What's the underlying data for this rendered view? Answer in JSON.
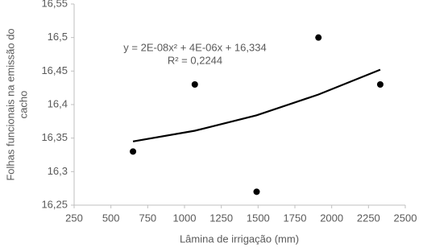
{
  "chart_data": {
    "type": "scatter",
    "xlabel": "Lâmina de irrigação (mm)",
    "ylabel": [
      "Folhas funcionais na emissão do",
      "cacho"
    ],
    "annotations": [
      "y = 2E-08x² + 4E-06x + 16,334",
      "R² = 0,2244"
    ],
    "x": [
      650,
      1070,
      1490,
      1910,
      2330
    ],
    "values": [
      16.33,
      16.43,
      16.27,
      16.5,
      16.43
    ],
    "color": "#000000",
    "trendline": {
      "x": [
        650,
        1070,
        1490,
        1910,
        2330
      ],
      "values": [
        16.345,
        16.361,
        16.384,
        16.415,
        16.452
      ],
      "color": "#000000"
    },
    "xlim": [
      250,
      2500
    ],
    "xticks": [
      250,
      500,
      750,
      1000,
      1250,
      1500,
      1750,
      2000,
      2250,
      2500
    ],
    "ylim": [
      16.25,
      16.55
    ],
    "yticks": [
      {
        "value": 16.25,
        "label": "16,25"
      },
      {
        "value": 16.3,
        "label": "16,3"
      },
      {
        "value": 16.35,
        "label": "16,35"
      },
      {
        "value": 16.4,
        "label": "16,4"
      },
      {
        "value": 16.45,
        "label": "16,45"
      },
      {
        "value": 16.5,
        "label": "16,5"
      },
      {
        "value": 16.55,
        "label": "16,55"
      }
    ],
    "grid": false
  }
}
